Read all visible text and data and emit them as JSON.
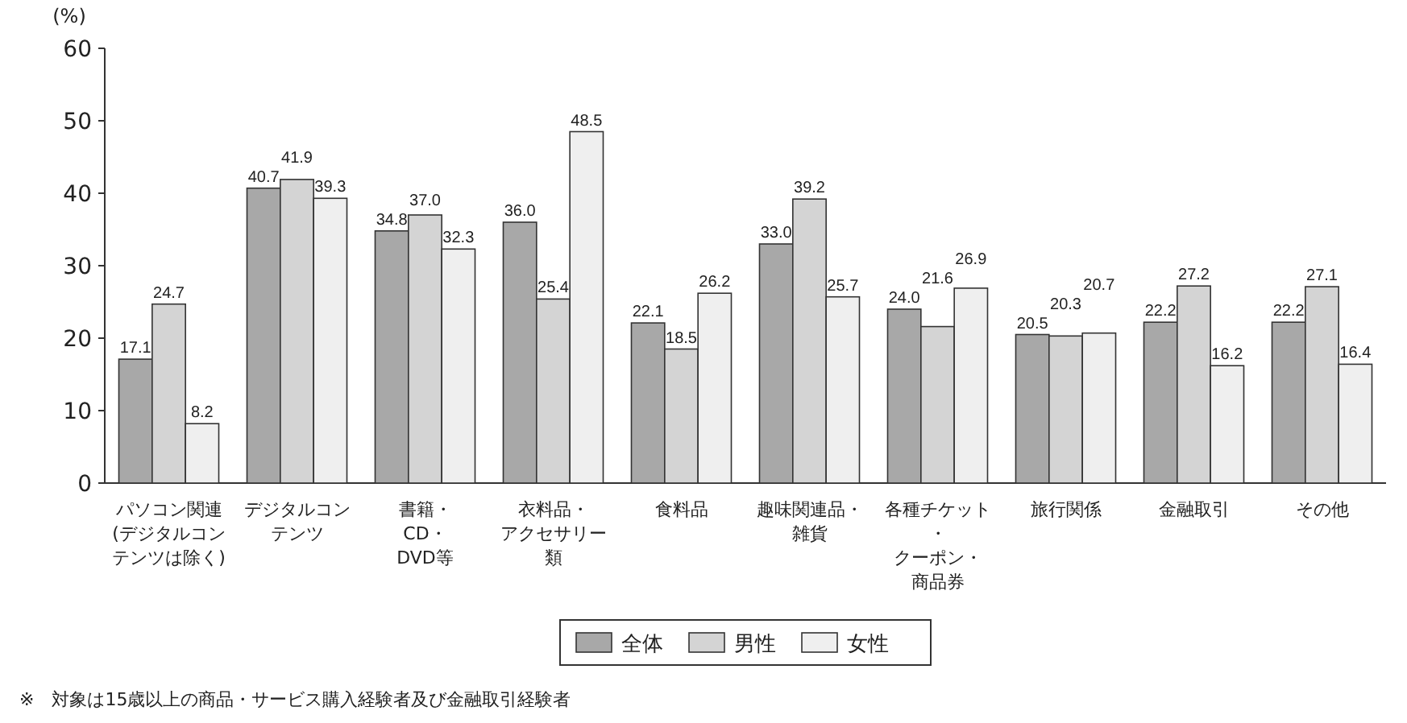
{
  "chart_data": {
    "type": "bar",
    "ylabel": "(%)",
    "categories": [
      "パソコン関連(デジタルコンテンツは除く)",
      "デジタルコンテンツ",
      "書籍・CD・DVD等",
      "衣料品・アクセサリー類",
      "食料品",
      "趣味関連品・雑貨",
      "各種チケット・クーポン・商品券",
      "旅行関係",
      "金融取引",
      "その他"
    ],
    "series": [
      {
        "name": "全体",
        "color": "#a8a8a8",
        "values": [
          17.1,
          40.7,
          34.8,
          36.0,
          22.1,
          33.0,
          24.0,
          20.5,
          22.2,
          22.2
        ],
        "value_labels": [
          "17.1",
          "40.7",
          "34.8",
          "36.0",
          "22.1",
          "33.0",
          "24.0",
          "20.5",
          "22.2",
          "22.2"
        ]
      },
      {
        "name": "男性",
        "color": "#d4d4d4",
        "values": [
          24.7,
          41.9,
          37.0,
          25.4,
          18.5,
          39.2,
          21.6,
          20.3,
          27.2,
          27.1
        ],
        "value_labels": [
          "24.7",
          "41.9",
          "37.0",
          "25.4",
          "18.5",
          "39.2",
          "21.6",
          "20.3",
          "27.2",
          "27.1"
        ]
      },
      {
        "name": "女性",
        "color": "#efefef",
        "values": [
          8.2,
          39.3,
          32.3,
          48.5,
          26.2,
          25.7,
          26.9,
          20.7,
          16.2,
          16.4
        ],
        "value_labels": [
          "8.2",
          "39.3",
          "32.3",
          "48.5",
          "26.2",
          "25.7",
          "26.9",
          "20.7",
          "16.2",
          "16.4"
        ]
      }
    ],
    "ylim": [
      0,
      60
    ],
    "yticks": [
      0,
      10,
      20,
      30,
      40,
      50,
      60
    ],
    "grid": false,
    "legend": "bottom",
    "annotations": [
      "※　対象は15歳以上の商品・サービス購入経験者及び金融取引経験者"
    ]
  }
}
